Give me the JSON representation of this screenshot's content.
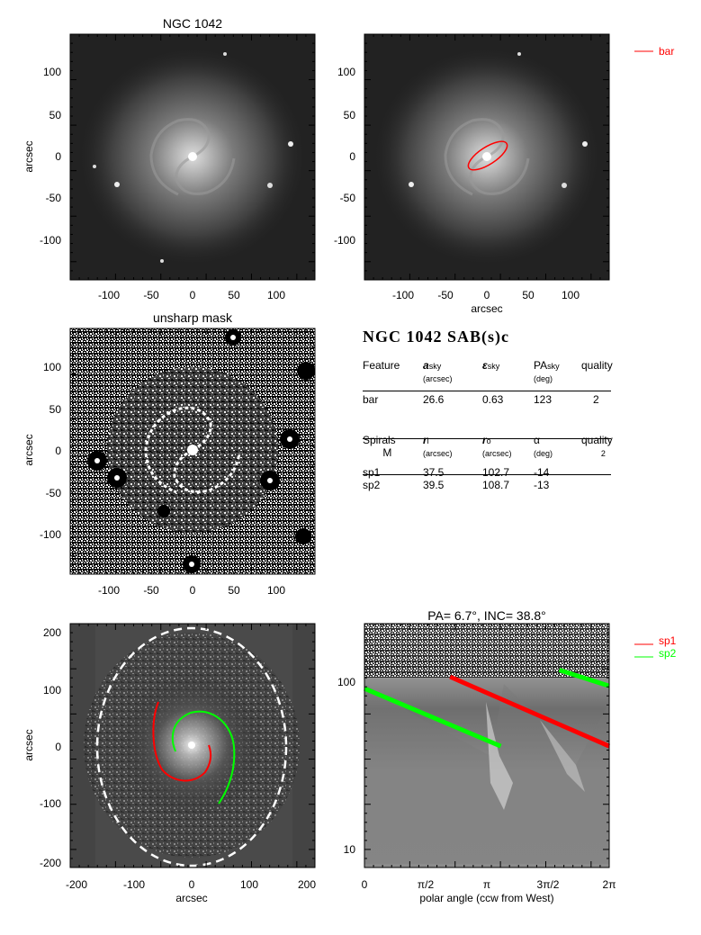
{
  "panel_galaxy": {
    "title": "NGC 1042",
    "ylabel": "arcsec",
    "xticks": [
      "-100",
      "-50",
      "0",
      "50",
      "100"
    ],
    "yticks": [
      "100",
      "50",
      "0",
      "-50",
      "-100"
    ]
  },
  "panel_bar": {
    "xlabel": "arcsec",
    "legend": "bar",
    "legend_color": "#ff0000",
    "xticks": [
      "-100",
      "-50",
      "0",
      "50",
      "100"
    ],
    "yticks": [
      "100",
      "50",
      "0",
      "-50",
      "-100"
    ]
  },
  "panel_unsharp": {
    "title": "unsharp mask",
    "ylabel": "arcsec",
    "xticks": [
      "-100",
      "-50",
      "0",
      "50",
      "100"
    ],
    "yticks": [
      "100",
      "50",
      "0",
      "-50",
      "-100"
    ]
  },
  "panel_spirals": {
    "xlabel": "arcsec",
    "ylabel": "arcsec",
    "xticks": [
      "-200",
      "-100",
      "0",
      "100",
      "200"
    ],
    "yticks": [
      "200",
      "100",
      "0",
      "-100",
      "-200"
    ]
  },
  "panel_polar": {
    "title": "PA=   6.7°, INC=  38.8°",
    "xlabel": "polar angle (ccw from West)",
    "xticks": [
      "0",
      "π/2",
      "π",
      "3π/2",
      "2π"
    ],
    "yticks": [
      "100",
      "10"
    ],
    "legend": [
      {
        "label": "sp1",
        "color": "#ff0000"
      },
      {
        "label": "sp2",
        "color": "#00ff00"
      }
    ]
  },
  "table": {
    "heading": "NGC 1042  SAB(s)c",
    "bar_header": {
      "c1": "Feature",
      "c2": "a",
      "c2sub": "sky",
      "c2u": "(arcsec)",
      "c3": "ε",
      "c3sub": "sky",
      "c4": "PA",
      "c4sub": "sky",
      "c4u": "(deg)",
      "c5": "quality"
    },
    "bar_row": {
      "name": "bar",
      "a": "26.6",
      "eps": "0.63",
      "pa": "123",
      "q": "2"
    },
    "spiral_header": {
      "c1": "Spirals",
      "c1b": "M",
      "c2": "r",
      "c2sub": "i",
      "c2u": "(arcsec)",
      "c3": "r",
      "c3sub": "o",
      "c3u": "(arcsec)",
      "c4": "α",
      "c4u": "(deg)",
      "c5": "quality",
      "c5b": "2"
    },
    "spiral_rows": [
      {
        "name": "sp1",
        "ri": "37.5",
        "ro": "102.7",
        "alpha": "-14"
      },
      {
        "name": "sp2",
        "ri": "39.5",
        "ro": "108.7",
        "alpha": "-13"
      }
    ]
  },
  "chart_data": {
    "type": "scatter",
    "title": "PA=   6.7°, INC=  38.8°",
    "xlabel": "polar angle (ccw from West)",
    "xlim": [
      0,
      6.283
    ],
    "ylim": [
      7,
      210
    ],
    "yscale": "log",
    "series": [
      {
        "name": "sp1",
        "x": [
          2.2,
          6.283
        ],
        "y": [
          100,
          38
        ]
      },
      {
        "name": "sp2",
        "x": [
          0,
          3.5
        ],
        "y": [
          85,
          38
        ]
      }
    ]
  }
}
